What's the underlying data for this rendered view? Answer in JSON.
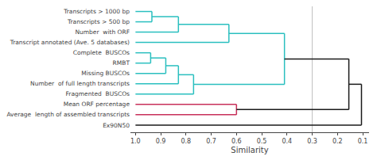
{
  "chart_data": {
    "type": "dendrogram",
    "categories": [
      "Transcripts > 1000 bp",
      "Transcripts > 500 bp",
      "Number  with ORF",
      "Transcript annotated (Ave. 5 databases)",
      "Complete  BUSCOs",
      "RMBT",
      "Missing BUSCOs",
      "Number  of full length transcripts",
      "Fragmented  BUSCOs",
      "Mean ORF percentage",
      "Average  length of assembled transcripts",
      "Ex90N50"
    ],
    "leaf_x": 1.0,
    "merges": [
      {
        "children": [
          0,
          1
        ],
        "x": 0.935,
        "color": "#2abfbf"
      },
      {
        "children": [
          12,
          2
        ],
        "x": 0.83,
        "color": "#2abfbf"
      },
      {
        "children": [
          13,
          3
        ],
        "x": 0.63,
        "color": "#2abfbf"
      },
      {
        "children": [
          4,
          5
        ],
        "x": 0.94,
        "color": "#2abfbf"
      },
      {
        "children": [
          15,
          6
        ],
        "x": 0.88,
        "color": "#2abfbf"
      },
      {
        "children": [
          16,
          7
        ],
        "x": 0.83,
        "color": "#2abfbf"
      },
      {
        "children": [
          17,
          8
        ],
        "x": 0.77,
        "color": "#2abfbf"
      },
      {
        "children": [
          14,
          18
        ],
        "x": 0.41,
        "color": "#2abfbf"
      },
      {
        "children": [
          9,
          10
        ],
        "x": 0.6,
        "color": "#c8305a"
      },
      {
        "children": [
          19,
          20
        ],
        "x": 0.155,
        "color": "#1a1a1a"
      },
      {
        "children": [
          21,
          11
        ],
        "x": 0.105,
        "color": "#1a1a1a"
      }
    ],
    "reference_line": {
      "x": 0.3,
      "color": "#c0c0c0"
    },
    "xlabel": "Similarity",
    "xlim": [
      1.02,
      0.075
    ],
    "xticks": [
      {
        "value": 1.0,
        "label": "1.0"
      },
      0.9,
      0.8,
      0.7,
      0.6,
      0.5,
      0.4,
      0.3,
      0.2,
      0.1
    ],
    "grid": false
  }
}
